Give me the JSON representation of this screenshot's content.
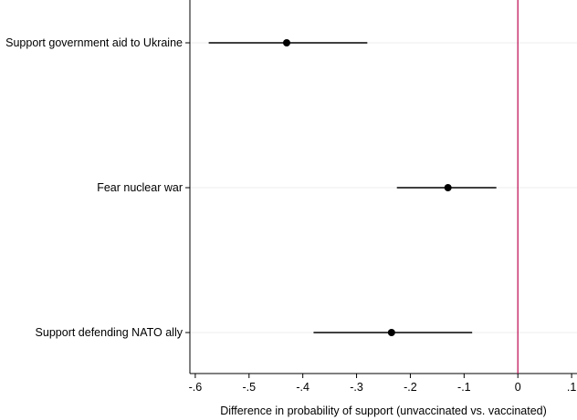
{
  "chart_data": {
    "type": "scatter",
    "subtype": "coefficient-plot-horizontal",
    "title": "",
    "xlabel": "Difference in probability of support (unvaccinated vs. vaccinated)",
    "ylabel": "",
    "xlim": [
      -0.61,
      0.11
    ],
    "xticks": [
      -0.6,
      -0.5,
      -0.4,
      -0.3,
      -0.2,
      -0.1,
      0,
      0.1
    ],
    "xtick_labels": [
      "-.6",
      "-.5",
      "-.4",
      "-.3",
      "-.2",
      "-.1",
      "0",
      ".1"
    ],
    "grid": "horizontal-light",
    "legend": "none",
    "reference_line": {
      "x": 0,
      "color": "#c2185b"
    },
    "marker_color": "#000000",
    "points": [
      {
        "label": "Support government aid to Ukraine",
        "estimate": -0.43,
        "ci_low": -0.575,
        "ci_high": -0.28
      },
      {
        "label": "Fear nuclear war",
        "estimate": -0.13,
        "ci_low": -0.225,
        "ci_high": -0.04
      },
      {
        "label": "Support defending NATO ally",
        "estimate": -0.235,
        "ci_low": -0.38,
        "ci_high": -0.085
      }
    ]
  }
}
